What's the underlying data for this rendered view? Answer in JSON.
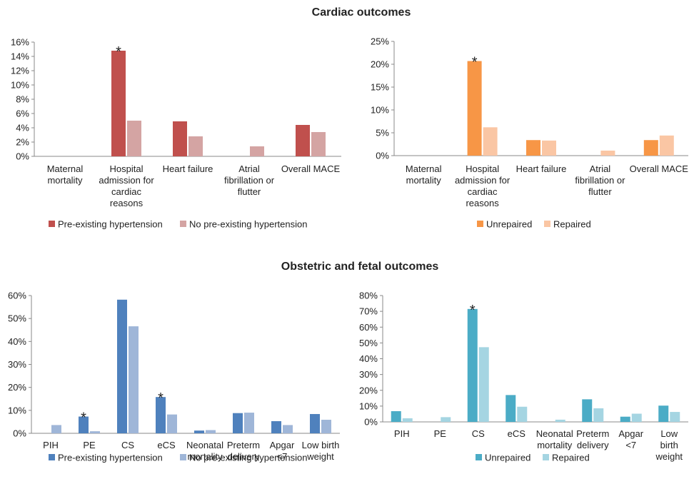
{
  "sections": {
    "cardiac_title": "Cardiac outcomes",
    "obstetric_title": "Obstetric and fetal outcomes"
  },
  "chart_data": [
    {
      "type": "bar",
      "categories": [
        [
          "Maternal",
          "mortality"
        ],
        [
          "Hospital",
          "admission for",
          "cardiac",
          "reasons"
        ],
        [
          "Heart failure"
        ],
        [
          "Atrial",
          "fibrillation or",
          "flutter"
        ],
        [
          "Overall MACE"
        ]
      ],
      "series": [
        {
          "name": "Pre-existing hypertension",
          "color": "#c0504d",
          "values": [
            0,
            14.8,
            4.9,
            0,
            4.4
          ]
        },
        {
          "name": "No pre-existing hypertension",
          "color": "#d4a4a3",
          "values": [
            0,
            5.0,
            2.8,
            1.4,
            3.4
          ]
        }
      ],
      "yticks": [
        "0%",
        "2%",
        "4%",
        "6%",
        "8%",
        "10%",
        "12%",
        "14%",
        "16%"
      ],
      "ylim": [
        0,
        16
      ],
      "annotations": [
        {
          "category": 1,
          "series": 0,
          "text": "*"
        }
      ],
      "legend": "bottom-left",
      "grid": false
    },
    {
      "type": "bar",
      "categories": [
        [
          "Maternal",
          "mortality"
        ],
        [
          "Hospital",
          "admission for",
          "cardiac",
          "reasons"
        ],
        [
          "Heart failure"
        ],
        [
          "Atrial",
          "fibrillation or",
          "flutter"
        ],
        [
          "Overall MACE"
        ]
      ],
      "series": [
        {
          "name": "Unrepaired",
          "color": "#f79646",
          "values": [
            0,
            20.7,
            3.4,
            0,
            3.4
          ]
        },
        {
          "name": "Repaired",
          "color": "#fac6a4",
          "values": [
            0,
            6.2,
            3.3,
            1.1,
            4.4
          ]
        }
      ],
      "yticks": [
        "0%",
        "5%",
        "10%",
        "15%",
        "20%",
        "25%"
      ],
      "ylim": [
        0,
        25
      ],
      "annotations": [
        {
          "category": 1,
          "series": 0,
          "text": "*"
        }
      ],
      "legend": "bottom-left",
      "grid": false
    },
    {
      "type": "bar",
      "categories": [
        [
          "PIH"
        ],
        [
          "PE"
        ],
        [
          "CS"
        ],
        [
          "eCS"
        ],
        [
          "Neonatal",
          "mortality"
        ],
        [
          "Preterm",
          "delivery"
        ],
        [
          "Apgar",
          "<7"
        ],
        [
          "Low birth",
          "weight"
        ]
      ],
      "series": [
        {
          "name": "Pre-existing hypertension",
          "color": "#4f81bd",
          "values": [
            0,
            7.3,
            58.2,
            15.8,
            1.2,
            8.8,
            5.3,
            8.4
          ]
        },
        {
          "name": "No pre-existing hypertension",
          "color": "#9fb6d8",
          "values": [
            3.6,
            0.9,
            46.6,
            8.2,
            1.4,
            9.0,
            3.6,
            5.9
          ]
        }
      ],
      "yticks": [
        "0%",
        "10%",
        "20%",
        "30%",
        "40%",
        "50%",
        "60%"
      ],
      "ylim": [
        0,
        60
      ],
      "annotations": [
        {
          "category": 1,
          "series": 0,
          "text": "*"
        },
        {
          "category": 3,
          "series": 0,
          "text": "*"
        }
      ],
      "legend": "bottom-left",
      "grid": false
    },
    {
      "type": "bar",
      "categories": [
        [
          "PIH"
        ],
        [
          "PE"
        ],
        [
          "CS"
        ],
        [
          "eCS"
        ],
        [
          "Neonatal",
          "mortality"
        ],
        [
          "Preterm",
          "delivery"
        ],
        [
          "Apgar",
          "<7"
        ],
        [
          "Low",
          "birth",
          "weight"
        ]
      ],
      "series": [
        {
          "name": "Unrepaired",
          "color": "#4bacc6",
          "values": [
            6.8,
            0,
            71.5,
            17.0,
            0,
            14.3,
            3.3,
            10.3
          ]
        },
        {
          "name": "Repaired",
          "color": "#a5d5e2",
          "values": [
            2.3,
            3.0,
            47.3,
            9.6,
            1.4,
            8.6,
            5.2,
            6.3
          ]
        }
      ],
      "yticks": [
        "0%",
        "10%",
        "20%",
        "30%",
        "40%",
        "50%",
        "60%",
        "70%",
        "80%"
      ],
      "ylim": [
        0,
        80
      ],
      "annotations": [
        {
          "category": 2,
          "series": 0,
          "text": "*"
        }
      ],
      "legend": "bottom-left",
      "grid": false
    }
  ]
}
